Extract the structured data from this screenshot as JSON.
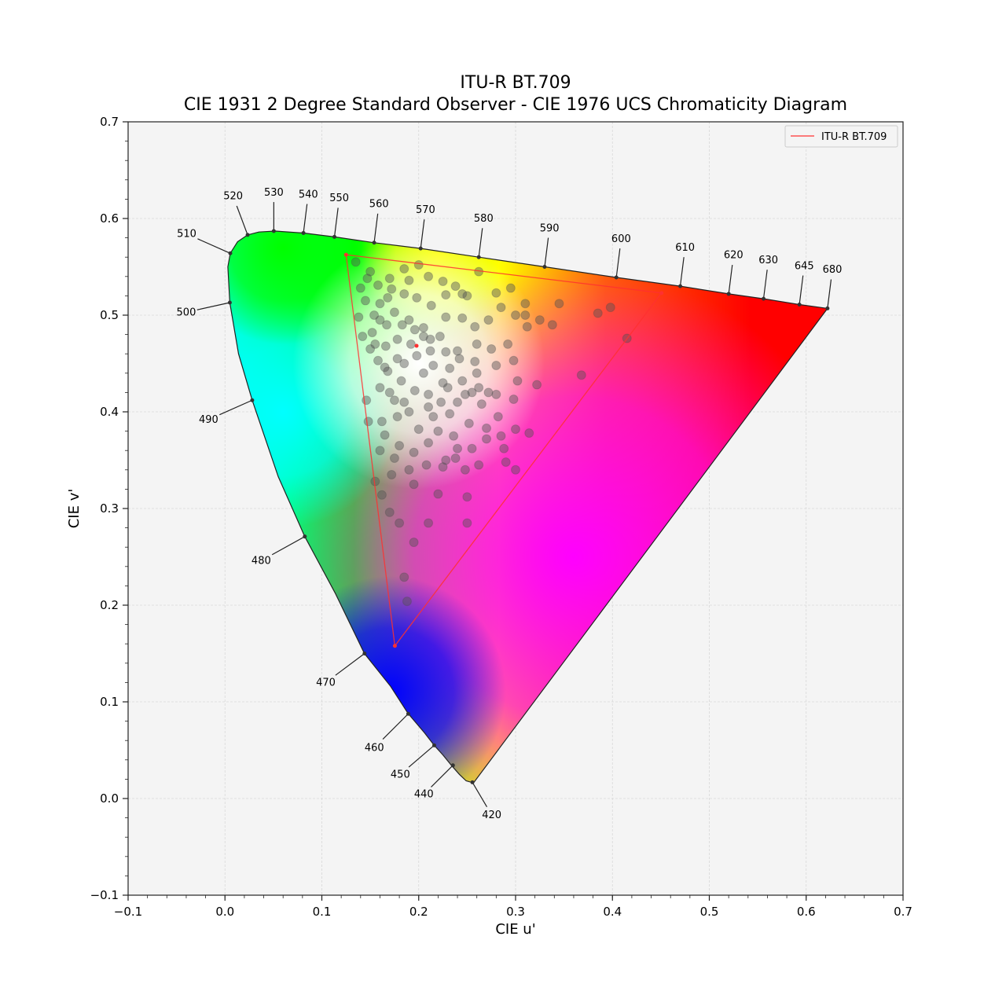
{
  "chart_data": {
    "type": "scatter",
    "title": "ITU-R BT.709",
    "subtitle": "CIE 1931 2 Degree Standard Observer - CIE 1976 UCS Chromaticity Diagram",
    "xlabel": "CIE u'",
    "ylabel": "CIE v'",
    "xlim": [
      -0.1,
      0.7
    ],
    "ylim": [
      -0.1,
      0.7
    ],
    "x_ticks": [
      "−0.1",
      "0.0",
      "0.1",
      "0.2",
      "0.3",
      "0.4",
      "0.5",
      "0.6",
      "0.7"
    ],
    "x_tick_values": [
      -0.1,
      0.0,
      0.1,
      0.2,
      0.3,
      0.4,
      0.5,
      0.6,
      0.7
    ],
    "y_ticks": [
      "−0.1",
      "0.0",
      "0.1",
      "0.2",
      "0.3",
      "0.4",
      "0.5",
      "0.6",
      "0.7"
    ],
    "y_tick_values": [
      -0.1,
      0.0,
      0.1,
      0.2,
      0.3,
      0.4,
      0.5,
      0.6,
      0.7
    ],
    "grid": true,
    "legend": {
      "position": "top-right",
      "entries": [
        {
          "label": "ITU-R BT.709",
          "color": "#ff3030"
        }
      ]
    },
    "spectral_locus": [
      [
        0.2568,
        0.0165
      ],
      [
        0.2554,
        0.0168
      ],
      [
        0.2527,
        0.0172
      ],
      [
        0.249,
        0.0183
      ],
      [
        0.242,
        0.025
      ],
      [
        0.234,
        0.034
      ],
      [
        0.225,
        0.045
      ],
      [
        0.216,
        0.055
      ],
      [
        0.206,
        0.068
      ],
      [
        0.189,
        0.088
      ],
      [
        0.171,
        0.116
      ],
      [
        0.144,
        0.15
      ],
      [
        0.114,
        0.212
      ],
      [
        0.0824,
        0.271
      ],
      [
        0.055,
        0.333
      ],
      [
        0.0281,
        0.412
      ],
      [
        0.014,
        0.46
      ],
      [
        0.005,
        0.513
      ],
      [
        0.003,
        0.55
      ],
      [
        0.0055,
        0.564
      ],
      [
        0.013,
        0.576
      ],
      [
        0.0234,
        0.583
      ],
      [
        0.035,
        0.586
      ],
      [
        0.052,
        0.587
      ],
      [
        0.081,
        0.585
      ],
      [
        0.113,
        0.581
      ],
      [
        0.154,
        0.575
      ],
      [
        0.202,
        0.569
      ],
      [
        0.262,
        0.56
      ],
      [
        0.33,
        0.55
      ],
      [
        0.404,
        0.539
      ],
      [
        0.47,
        0.53
      ],
      [
        0.52,
        0.522
      ],
      [
        0.556,
        0.517
      ],
      [
        0.593,
        0.511
      ],
      [
        0.622,
        0.507
      ]
    ],
    "wavelength_marks": [
      {
        "label": "420",
        "u": 0.2554,
        "v": 0.0168,
        "du": 0.02,
        "dv": -0.034
      },
      {
        "label": "440",
        "u": 0.2353,
        "v": 0.0343,
        "du": -0.03,
        "dv": -0.03
      },
      {
        "label": "450",
        "u": 0.216,
        "v": 0.055,
        "du": -0.035,
        "dv": -0.03
      },
      {
        "label": "460",
        "u": 0.1892,
        "v": 0.0876,
        "du": -0.035,
        "dv": -0.035
      },
      {
        "label": "470",
        "u": 0.1441,
        "v": 0.15,
        "du": -0.04,
        "dv": -0.03
      },
      {
        "label": "480",
        "u": 0.0824,
        "v": 0.271,
        "du": -0.045,
        "dv": -0.025
      },
      {
        "label": "490",
        "u": 0.0281,
        "v": 0.412,
        "du": -0.045,
        "dv": -0.02
      },
      {
        "label": "500",
        "u": 0.005,
        "v": 0.513,
        "du": -0.045,
        "dv": -0.01
      },
      {
        "label": "510",
        "u": 0.0055,
        "v": 0.564,
        "du": -0.045,
        "dv": 0.02
      },
      {
        "label": "520",
        "u": 0.0234,
        "v": 0.583,
        "du": -0.015,
        "dv": 0.04
      },
      {
        "label": "530",
        "u": 0.0504,
        "v": 0.587,
        "du": 0.0,
        "dv": 0.04
      },
      {
        "label": "540",
        "u": 0.081,
        "v": 0.585,
        "du": 0.005,
        "dv": 0.04
      },
      {
        "label": "550",
        "u": 0.113,
        "v": 0.581,
        "du": 0.005,
        "dv": 0.04
      },
      {
        "label": "560",
        "u": 0.154,
        "v": 0.575,
        "du": 0.005,
        "dv": 0.04
      },
      {
        "label": "570",
        "u": 0.202,
        "v": 0.569,
        "du": 0.005,
        "dv": 0.04
      },
      {
        "label": "580",
        "u": 0.262,
        "v": 0.56,
        "du": 0.005,
        "dv": 0.04
      },
      {
        "label": "590",
        "u": 0.33,
        "v": 0.55,
        "du": 0.005,
        "dv": 0.04
      },
      {
        "label": "600",
        "u": 0.404,
        "v": 0.539,
        "du": 0.005,
        "dv": 0.04
      },
      {
        "label": "610",
        "u": 0.47,
        "v": 0.53,
        "du": 0.005,
        "dv": 0.04
      },
      {
        "label": "620",
        "u": 0.52,
        "v": 0.522,
        "du": 0.005,
        "dv": 0.04
      },
      {
        "label": "630",
        "u": 0.556,
        "v": 0.517,
        "du": 0.005,
        "dv": 0.04
      },
      {
        "label": "645",
        "u": 0.593,
        "v": 0.511,
        "du": 0.005,
        "dv": 0.04
      },
      {
        "label": "680",
        "u": 0.622,
        "v": 0.507,
        "du": 0.005,
        "dv": 0.04
      }
    ],
    "gamut_triangle": {
      "name": "ITU-R BT.709",
      "color": "#ff3030",
      "vertices": [
        [
          0.4507,
          0.5229
        ],
        [
          0.125,
          0.5625
        ],
        [
          0.1754,
          0.1579
        ]
      ],
      "whitepoint": [
        0.1978,
        0.4683
      ]
    },
    "primary_colors": {
      "red": "#ff0000",
      "green": "#00ff00",
      "blue": "#0000ff",
      "cyan": "#00ffff",
      "magenta": "#ff00ff",
      "yellow": "#ffff00",
      "white": "#ffffff"
    },
    "scatter_points": [
      [
        0.135,
        0.555
      ],
      [
        0.15,
        0.545
      ],
      [
        0.17,
        0.538
      ],
      [
        0.185,
        0.548
      ],
      [
        0.2,
        0.552
      ],
      [
        0.21,
        0.54
      ],
      [
        0.225,
        0.535
      ],
      [
        0.238,
        0.53
      ],
      [
        0.25,
        0.52
      ],
      [
        0.262,
        0.545
      ],
      [
        0.28,
        0.523
      ],
      [
        0.295,
        0.528
      ],
      [
        0.31,
        0.512
      ],
      [
        0.345,
        0.512
      ],
      [
        0.385,
        0.502
      ],
      [
        0.398,
        0.508
      ],
      [
        0.415,
        0.476
      ],
      [
        0.368,
        0.438
      ],
      [
        0.322,
        0.428
      ],
      [
        0.302,
        0.432
      ],
      [
        0.28,
        0.448
      ],
      [
        0.258,
        0.452
      ],
      [
        0.24,
        0.463
      ],
      [
        0.222,
        0.478
      ],
      [
        0.205,
        0.487
      ],
      [
        0.19,
        0.495
      ],
      [
        0.175,
        0.503
      ],
      [
        0.16,
        0.512
      ],
      [
        0.145,
        0.515
      ],
      [
        0.138,
        0.498
      ],
      [
        0.142,
        0.478
      ],
      [
        0.15,
        0.465
      ],
      [
        0.158,
        0.453
      ],
      [
        0.168,
        0.442
      ],
      [
        0.182,
        0.432
      ],
      [
        0.196,
        0.422
      ],
      [
        0.21,
        0.418
      ],
      [
        0.23,
        0.425
      ],
      [
        0.248,
        0.418
      ],
      [
        0.265,
        0.408
      ],
      [
        0.282,
        0.395
      ],
      [
        0.3,
        0.382
      ],
      [
        0.314,
        0.378
      ],
      [
        0.288,
        0.362
      ],
      [
        0.27,
        0.372
      ],
      [
        0.255,
        0.362
      ],
      [
        0.238,
        0.352
      ],
      [
        0.225,
        0.343
      ],
      [
        0.21,
        0.368
      ],
      [
        0.195,
        0.358
      ],
      [
        0.18,
        0.365
      ],
      [
        0.165,
        0.376
      ],
      [
        0.148,
        0.39
      ],
      [
        0.146,
        0.412
      ],
      [
        0.16,
        0.425
      ],
      [
        0.175,
        0.412
      ],
      [
        0.19,
        0.4
      ],
      [
        0.215,
        0.395
      ],
      [
        0.232,
        0.398
      ],
      [
        0.252,
        0.388
      ],
      [
        0.27,
        0.383
      ],
      [
        0.285,
        0.375
      ],
      [
        0.3,
        0.34
      ],
      [
        0.29,
        0.348
      ],
      [
        0.262,
        0.345
      ],
      [
        0.24,
        0.362
      ],
      [
        0.22,
        0.315
      ],
      [
        0.25,
        0.312
      ],
      [
        0.195,
        0.325
      ],
      [
        0.172,
        0.335
      ],
      [
        0.162,
        0.314
      ],
      [
        0.155,
        0.328
      ],
      [
        0.17,
        0.296
      ],
      [
        0.18,
        0.285
      ],
      [
        0.195,
        0.265
      ],
      [
        0.21,
        0.285
      ],
      [
        0.25,
        0.285
      ],
      [
        0.188,
        0.204
      ],
      [
        0.185,
        0.229
      ],
      [
        0.14,
        0.528
      ],
      [
        0.16,
        0.495
      ],
      [
        0.178,
        0.475
      ],
      [
        0.198,
        0.458
      ],
      [
        0.215,
        0.448
      ],
      [
        0.232,
        0.445
      ],
      [
        0.26,
        0.47
      ],
      [
        0.275,
        0.465
      ],
      [
        0.292,
        0.47
      ],
      [
        0.298,
        0.453
      ],
      [
        0.31,
        0.5
      ],
      [
        0.325,
        0.495
      ],
      [
        0.338,
        0.49
      ],
      [
        0.312,
        0.488
      ],
      [
        0.3,
        0.5
      ],
      [
        0.285,
        0.508
      ],
      [
        0.272,
        0.495
      ],
      [
        0.258,
        0.488
      ],
      [
        0.245,
        0.497
      ],
      [
        0.228,
        0.498
      ],
      [
        0.213,
        0.51
      ],
      [
        0.198,
        0.518
      ],
      [
        0.185,
        0.522
      ],
      [
        0.172,
        0.527
      ],
      [
        0.158,
        0.531
      ],
      [
        0.147,
        0.538
      ],
      [
        0.228,
        0.521
      ],
      [
        0.245,
        0.522
      ],
      [
        0.19,
        0.536
      ],
      [
        0.168,
        0.518
      ],
      [
        0.154,
        0.5
      ],
      [
        0.152,
        0.482
      ],
      [
        0.166,
        0.468
      ],
      [
        0.185,
        0.45
      ],
      [
        0.205,
        0.44
      ],
      [
        0.225,
        0.43
      ],
      [
        0.245,
        0.432
      ],
      [
        0.262,
        0.425
      ],
      [
        0.28,
        0.418
      ],
      [
        0.298,
        0.413
      ],
      [
        0.205,
        0.478
      ],
      [
        0.212,
        0.463
      ],
      [
        0.192,
        0.47
      ],
      [
        0.178,
        0.455
      ],
      [
        0.165,
        0.446
      ],
      [
        0.17,
        0.42
      ],
      [
        0.185,
        0.41
      ],
      [
        0.21,
        0.405
      ],
      [
        0.223,
        0.41
      ],
      [
        0.24,
        0.41
      ],
      [
        0.255,
        0.42
      ],
      [
        0.272,
        0.42
      ],
      [
        0.26,
        0.44
      ],
      [
        0.242,
        0.455
      ],
      [
        0.228,
        0.462
      ],
      [
        0.212,
        0.475
      ],
      [
        0.196,
        0.485
      ],
      [
        0.183,
        0.49
      ],
      [
        0.167,
        0.49
      ],
      [
        0.155,
        0.47
      ],
      [
        0.162,
        0.39
      ],
      [
        0.178,
        0.395
      ],
      [
        0.2,
        0.382
      ],
      [
        0.22,
        0.38
      ],
      [
        0.236,
        0.375
      ],
      [
        0.248,
        0.34
      ],
      [
        0.228,
        0.35
      ],
      [
        0.208,
        0.345
      ],
      [
        0.19,
        0.34
      ],
      [
        0.175,
        0.352
      ],
      [
        0.16,
        0.36
      ]
    ]
  }
}
